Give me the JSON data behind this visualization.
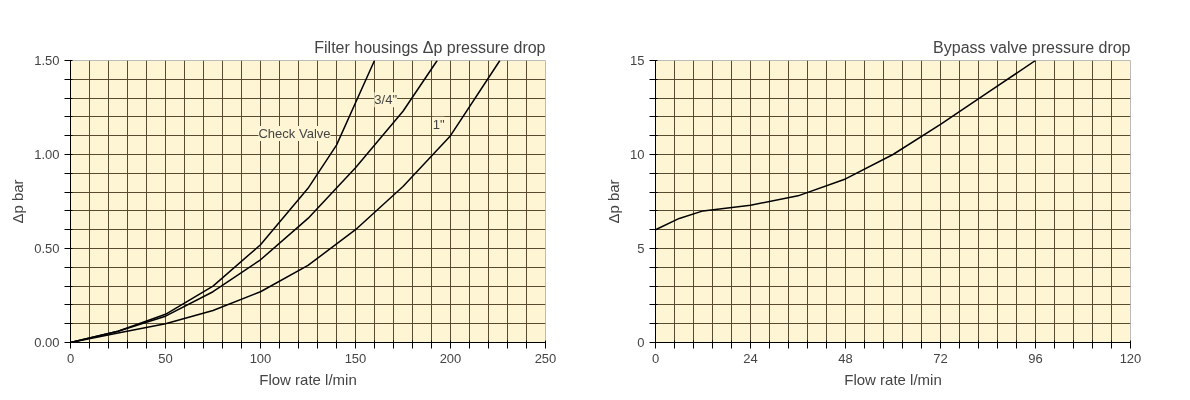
{
  "chart_data": [
    {
      "type": "line",
      "title": "Filter housings Δp pressure drop",
      "xlabel": "Flow rate l/min",
      "ylabel": "Δp bar",
      "xlim": [
        0,
        250
      ],
      "ylim": [
        0,
        1.5
      ],
      "xticks": [
        0,
        {
          "value": 10,
          "label": null
        },
        {
          "value": 20,
          "label": null
        },
        {
          "value": 30,
          "label": null
        },
        {
          "value": 40,
          "label": null
        },
        50,
        {
          "value": 60,
          "label": null
        },
        {
          "value": 70,
          "label": null
        },
        {
          "value": 80,
          "label": null
        },
        {
          "value": 90,
          "label": null
        },
        100,
        {
          "value": 110,
          "label": null
        },
        {
          "value": 120,
          "label": null
        },
        {
          "value": 130,
          "label": null
        },
        {
          "value": 140,
          "label": null
        },
        150,
        {
          "value": 160,
          "label": null
        },
        {
          "value": 170,
          "label": null
        },
        {
          "value": 180,
          "label": null
        },
        {
          "value": 190,
          "label": null
        },
        200,
        {
          "value": 210,
          "label": null
        },
        {
          "value": 220,
          "label": null
        },
        {
          "value": 230,
          "label": null
        },
        {
          "value": 240,
          "label": null
        },
        250
      ],
      "yticks": [
        {
          "value": 0,
          "label": "0.00"
        },
        {
          "value": 0.1,
          "label": null
        },
        {
          "value": 0.2,
          "label": null
        },
        {
          "value": 0.3,
          "label": null
        },
        {
          "value": 0.4,
          "label": null
        },
        {
          "value": 0.5,
          "label": "0.50"
        },
        {
          "value": 0.6,
          "label": null
        },
        {
          "value": 0.7,
          "label": null
        },
        {
          "value": 0.8,
          "label": null
        },
        {
          "value": 0.9,
          "label": null
        },
        {
          "value": 1,
          "label": "1.00"
        },
        {
          "value": 1.1,
          "label": null
        },
        {
          "value": 1.2,
          "label": null
        },
        {
          "value": 1.3,
          "label": null
        },
        {
          "value": 1.4,
          "label": null
        },
        {
          "value": 1.5,
          "label": "1.50"
        }
      ],
      "grid": true,
      "marker": "none",
      "line_style": "solid",
      "series": [
        {
          "name": "Check Valve",
          "color": "#000000",
          "x": [
            0,
            25,
            50,
            75,
            100,
            125,
            140,
            160
          ],
          "values": [
            0,
            0.06,
            0.15,
            0.3,
            0.52,
            0.82,
            1.05,
            1.5
          ]
        },
        {
          "name": "3/4\"",
          "color": "#000000",
          "x": [
            0,
            25,
            50,
            75,
            100,
            125,
            150,
            175,
            193
          ],
          "values": [
            0,
            0.06,
            0.14,
            0.27,
            0.44,
            0.66,
            0.93,
            1.23,
            1.5
          ]
        },
        {
          "name": "1\"",
          "color": "#000000",
          "x": [
            0,
            25,
            50,
            75,
            100,
            125,
            150,
            175,
            200,
            226
          ],
          "values": [
            0,
            0.05,
            0.1,
            0.17,
            0.27,
            0.41,
            0.6,
            0.83,
            1.1,
            1.5
          ]
        }
      ]
    },
    {
      "type": "line",
      "title": "Bypass valve pressure drop",
      "xlabel": "Flow rate l/min",
      "ylabel": "Δp bar",
      "xlim": [
        0,
        120
      ],
      "ylim": [
        0,
        15
      ],
      "xticks": [
        0,
        {
          "value": 4.8,
          "label": null
        },
        {
          "value": 9.6,
          "label": null
        },
        {
          "value": 14.4,
          "label": null
        },
        {
          "value": 19.2,
          "label": null
        },
        24,
        {
          "value": 28.8,
          "label": null
        },
        {
          "value": 33.6,
          "label": null
        },
        {
          "value": 38.4,
          "label": null
        },
        {
          "value": 43.2,
          "label": null
        },
        48,
        {
          "value": 52.8,
          "label": null
        },
        {
          "value": 57.6,
          "label": null
        },
        {
          "value": 62.4,
          "label": null
        },
        {
          "value": 67.2,
          "label": null
        },
        72,
        {
          "value": 76.8,
          "label": null
        },
        {
          "value": 81.6,
          "label": null
        },
        {
          "value": 86.4,
          "label": null
        },
        {
          "value": 91.2,
          "label": null
        },
        96,
        {
          "value": 100.8,
          "label": null
        },
        {
          "value": 105.6,
          "label": null
        },
        {
          "value": 110.4,
          "label": null
        },
        {
          "value": 115.2,
          "label": null
        },
        120
      ],
      "yticks": [
        0,
        {
          "value": 1,
          "label": null
        },
        {
          "value": 2,
          "label": null
        },
        {
          "value": 3,
          "label": null
        },
        {
          "value": 4,
          "label": null
        },
        5,
        {
          "value": 6,
          "label": null
        },
        {
          "value": 7,
          "label": null
        },
        {
          "value": 8,
          "label": null
        },
        {
          "value": 9,
          "label": null
        },
        10,
        {
          "value": 11,
          "label": null
        },
        {
          "value": 12,
          "label": null
        },
        {
          "value": 13,
          "label": null
        },
        {
          "value": 14,
          "label": null
        },
        15
      ],
      "grid": true,
      "marker": "none",
      "line_style": "solid",
      "series": [
        {
          "color": "#000000",
          "x": [
            0,
            6,
            12,
            24,
            36,
            48,
            60,
            72,
            84,
            96
          ],
          "values": [
            6,
            6.6,
            7,
            7.3,
            7.8,
            8.7,
            10,
            11.6,
            13.3,
            15
          ]
        }
      ]
    }
  ]
}
